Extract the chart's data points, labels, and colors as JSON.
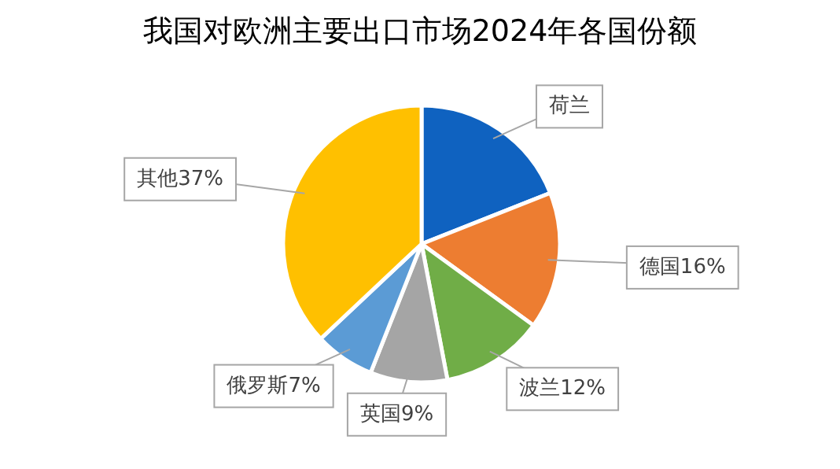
{
  "chart_data": {
    "type": "pie",
    "title": "我国对欧洲主要出口市场2024年各国份额",
    "categories": [
      "荷兰",
      "德国",
      "波兰",
      "英国",
      "俄罗斯",
      "其他"
    ],
    "values": [
      19,
      16,
      12,
      9,
      7,
      37
    ],
    "value_labels": [
      null,
      "16%",
      "12%",
      "9%",
      "7%",
      "37%"
    ],
    "colors": [
      "#0F62C0",
      "#ED7D31",
      "#70AD47",
      "#A5A5A5",
      "#5B9BD5",
      "#FFC000"
    ]
  }
}
